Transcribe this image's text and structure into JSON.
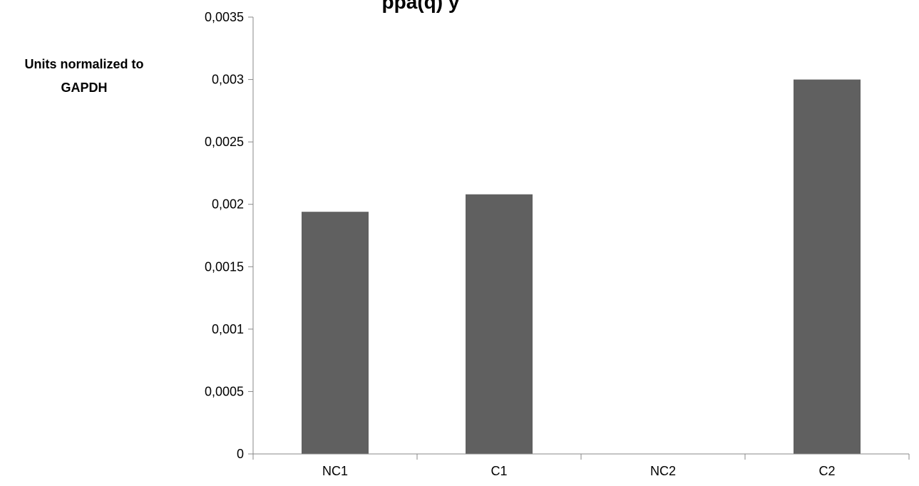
{
  "chart_data": {
    "type": "bar",
    "title_fragment": "ppa(q) y",
    "ylabel_lines": [
      "Units normalized to",
      "GAPDH"
    ],
    "xlabel": "",
    "categories": [
      "NC1",
      "C1",
      "NC2",
      "C2"
    ],
    "values": [
      0.00194,
      0.00208,
      0,
      0.003
    ],
    "ylim": [
      0,
      0.0035
    ],
    "yticks": [
      "0",
      "0,0005",
      "0,001",
      "0,0015",
      "0,002",
      "0,0025",
      "0,003",
      "0,0035"
    ],
    "grid": false,
    "legend": "none",
    "bar_color": "#606060",
    "axis_color": "#888888"
  }
}
